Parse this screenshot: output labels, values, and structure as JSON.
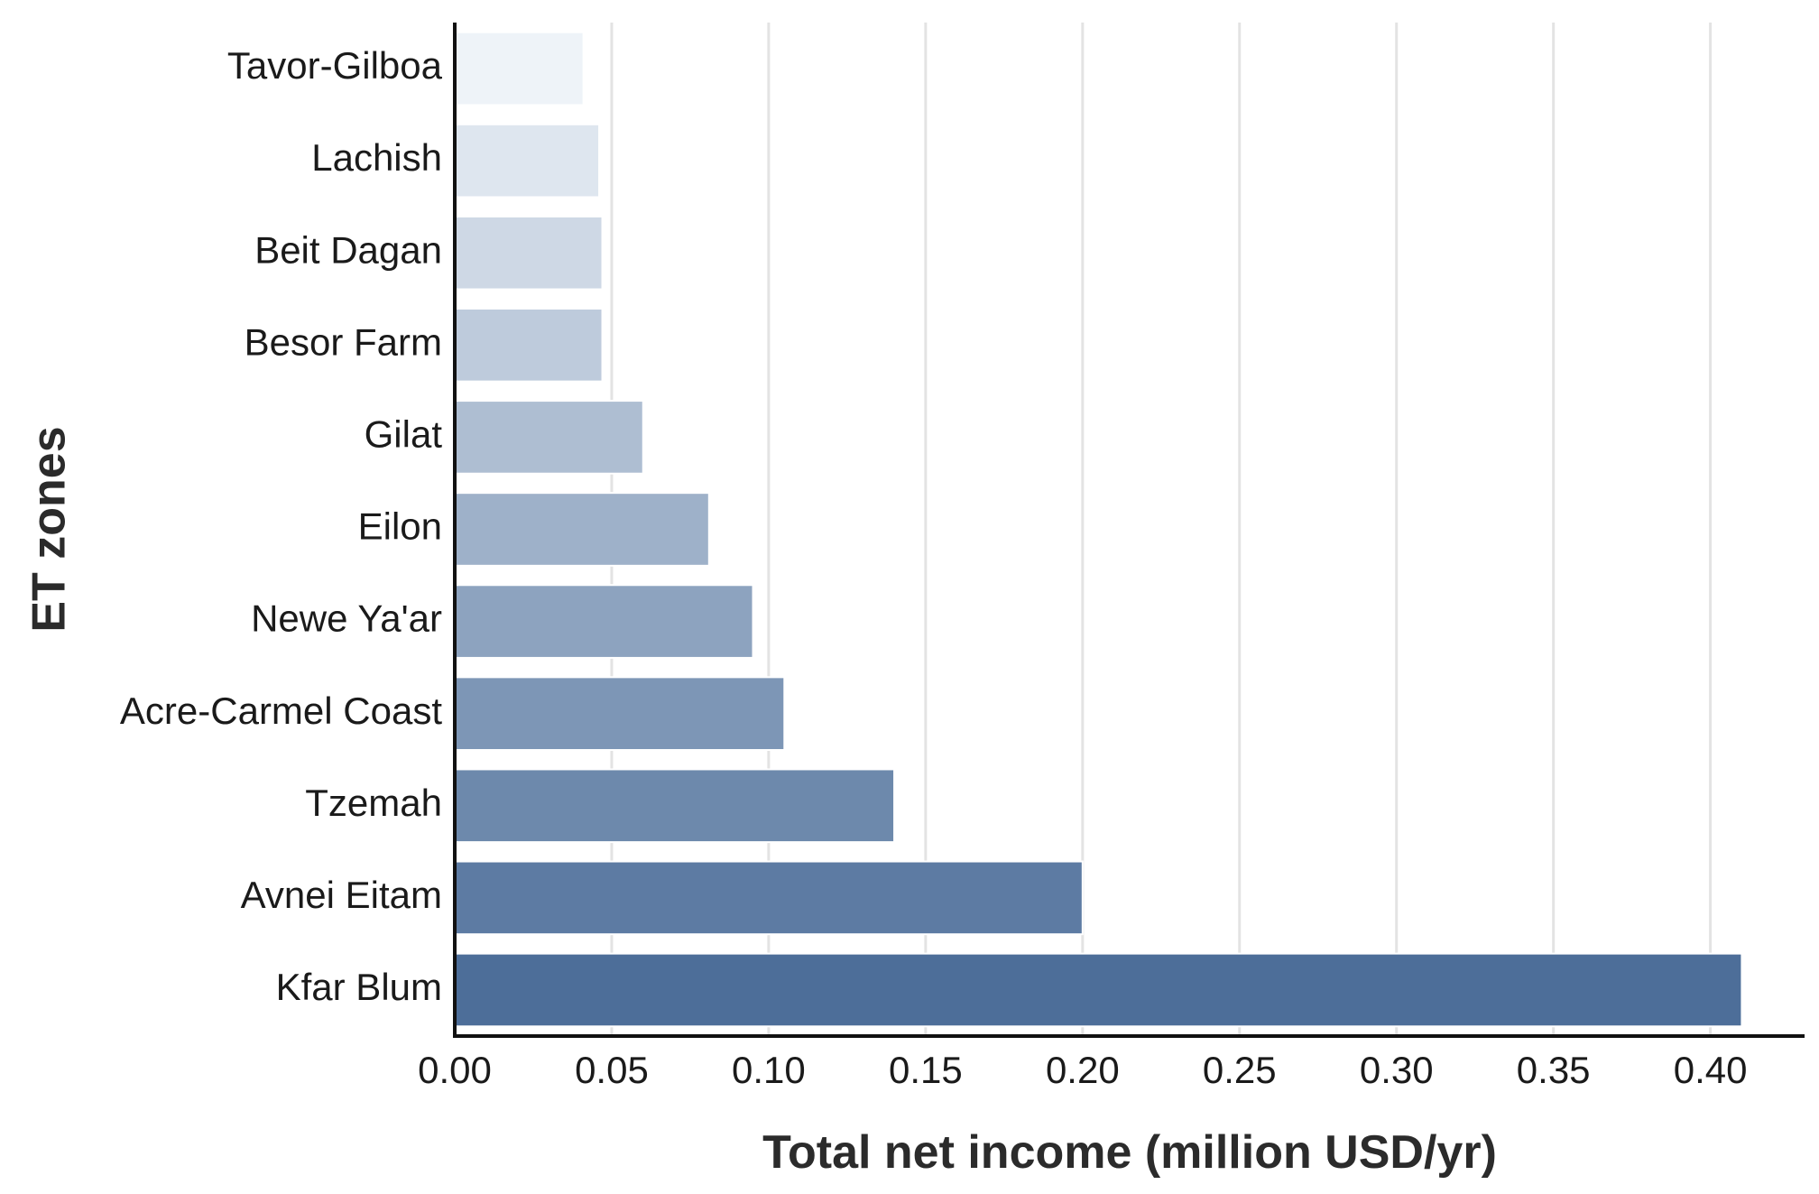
{
  "chart_data": {
    "type": "bar",
    "orientation": "horizontal",
    "title": "",
    "xlabel": "Total net income (million USD/yr)",
    "ylabel": "ET zones",
    "categories": [
      "Tavor-Gilboa",
      "Lachish",
      "Beit Dagan",
      "Besor Farm",
      "Gilat",
      "Eilon",
      "Newe Ya'ar",
      "Acre-Carmel Coast",
      "Tzemah",
      "Avnei Eitam",
      "Kfar Blum"
    ],
    "values": [
      0.041,
      0.046,
      0.047,
      0.047,
      0.06,
      0.081,
      0.095,
      0.105,
      0.14,
      0.2,
      0.41
    ],
    "xlim": [
      0,
      0.43
    ],
    "xticks": [
      "0.00",
      "0.05",
      "0.10",
      "0.15",
      "0.20",
      "0.25",
      "0.30",
      "0.35",
      "0.40"
    ],
    "xtick_values": [
      0,
      0.05,
      0.1,
      0.15,
      0.2,
      0.25,
      0.3,
      0.35,
      0.4
    ],
    "grid": "vertical",
    "legend": "none",
    "colors": {
      "bar_start": "#eef3f8",
      "bar_end": "#4d6e99",
      "grid": "#e3e3e3",
      "axis": "#111111",
      "text": "#1a1a1a"
    }
  }
}
